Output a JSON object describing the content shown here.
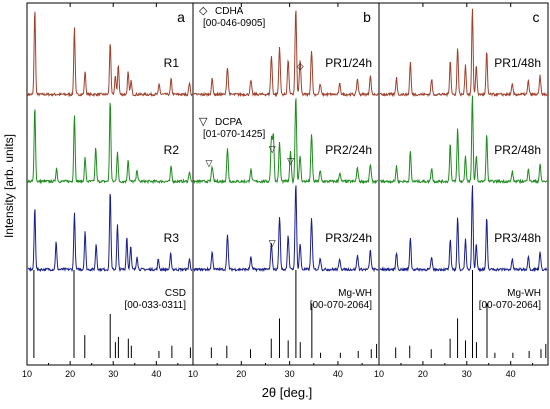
{
  "figure": {
    "ylabel": "Intensity [arb. units]",
    "xlabel": "2θ [deg.]",
    "xticks": [
      10,
      20,
      30,
      40
    ],
    "xlim": [
      10,
      48.5
    ],
    "colors": {
      "R1": "#a0412d",
      "R2": "#1e8c1e",
      "R3": "#1a1f8a",
      "ref": "#000000"
    }
  },
  "chart_data": [
    {
      "type": "line",
      "panel_letter": "a",
      "series": [
        {
          "name": "R1",
          "color": "#a0412d",
          "peaks": [
            [
              11.6,
              1.0
            ],
            [
              20.9,
              0.78
            ],
            [
              23.4,
              0.27
            ],
            [
              29.3,
              0.62
            ],
            [
              30.5,
              0.22
            ],
            [
              31.2,
              0.35
            ],
            [
              33.5,
              0.26
            ],
            [
              34.2,
              0.16
            ],
            [
              40.8,
              0.12
            ],
            [
              43.6,
              0.18
            ],
            [
              47.9,
              0.14
            ]
          ]
        },
        {
          "name": "R2",
          "color": "#1e8c1e",
          "peaks": [
            [
              11.6,
              0.88
            ],
            [
              16.7,
              0.16
            ],
            [
              20.9,
              0.78
            ],
            [
              23.4,
              0.28
            ],
            [
              25.9,
              0.4
            ],
            [
              29.3,
              0.95
            ],
            [
              31.0,
              0.35
            ],
            [
              33.5,
              0.26
            ],
            [
              35.6,
              0.14
            ],
            [
              43.6,
              0.18
            ],
            [
              47.9,
              0.12
            ]
          ]
        },
        {
          "name": "R3",
          "color": "#1a1f8a",
          "peaks": [
            [
              11.6,
              0.72
            ],
            [
              16.6,
              0.32
            ],
            [
              20.9,
              0.66
            ],
            [
              23.4,
              0.45
            ],
            [
              26.0,
              0.3
            ],
            [
              29.3,
              0.92
            ],
            [
              31.0,
              0.52
            ],
            [
              33.2,
              0.38
            ],
            [
              34.1,
              0.28
            ],
            [
              35.6,
              0.16
            ],
            [
              40.6,
              0.12
            ],
            [
              43.5,
              0.18
            ],
            [
              47.9,
              0.12
            ]
          ]
        }
      ],
      "reference": {
        "label": "CSD",
        "card": "[00-033-0311]",
        "lines": [
          [
            11.6,
            1.0
          ],
          [
            20.9,
            1.0
          ],
          [
            23.4,
            0.26
          ],
          [
            29.3,
            0.5
          ],
          [
            30.5,
            0.18
          ],
          [
            31.2,
            0.24
          ],
          [
            33.5,
            0.22
          ],
          [
            34.2,
            0.14
          ],
          [
            40.6,
            0.08
          ],
          [
            43.6,
            0.14
          ],
          [
            47.9,
            0.12
          ]
        ]
      }
    },
    {
      "type": "line",
      "panel_letter": "b",
      "series": [
        {
          "name": "PR1/24h",
          "color": "#a0412d",
          "peaks": [
            [
              13.8,
              0.18
            ],
            [
              17.0,
              0.32
            ],
            [
              21.9,
              0.16
            ],
            [
              26.2,
              0.45
            ],
            [
              27.9,
              0.55
            ],
            [
              29.7,
              0.4
            ],
            [
              31.3,
              1.0
            ],
            [
              32.2,
              0.4
            ],
            [
              34.6,
              0.52
            ],
            [
              36.4,
              0.12
            ],
            [
              40.5,
              0.12
            ],
            [
              44.2,
              0.18
            ],
            [
              46.9,
              0.22
            ]
          ]
        },
        {
          "name": "PR2/24h",
          "color": "#1e8c1e",
          "peaks": [
            [
              13.8,
              0.18
            ],
            [
              17.0,
              0.38
            ],
            [
              21.9,
              0.14
            ],
            [
              26.2,
              0.5
            ],
            [
              26.6,
              0.55
            ],
            [
              27.9,
              0.45
            ],
            [
              30.2,
              0.35
            ],
            [
              31.3,
              1.0
            ],
            [
              32.2,
              0.3
            ],
            [
              34.6,
              0.55
            ],
            [
              36.4,
              0.12
            ],
            [
              40.5,
              0.1
            ],
            [
              44.2,
              0.16
            ],
            [
              46.9,
              0.2
            ]
          ]
        },
        {
          "name": "PR3/24h",
          "color": "#1a1f8a",
          "peaks": [
            [
              13.8,
              0.2
            ],
            [
              17.0,
              0.4
            ],
            [
              21.9,
              0.14
            ],
            [
              26.2,
              0.3
            ],
            [
              27.9,
              0.62
            ],
            [
              29.7,
              0.4
            ],
            [
              31.3,
              1.0
            ],
            [
              32.2,
              0.3
            ],
            [
              34.6,
              0.6
            ],
            [
              36.4,
              0.14
            ],
            [
              40.5,
              0.12
            ],
            [
              44.2,
              0.16
            ],
            [
              46.9,
              0.22
            ]
          ]
        }
      ],
      "annotations": [
        {
          "symbol": "◇",
          "name": "CDHA",
          "card": "[00-046-0905]"
        },
        {
          "symbol": "▽",
          "name": "DCPA",
          "card": "[01-070-1425]"
        }
      ],
      "reference": {
        "label": "Mg-WH",
        "card": "[00-070-2064]",
        "lines": [
          [
            13.8,
            0.12
          ],
          [
            17.0,
            0.14
          ],
          [
            21.9,
            0.1
          ],
          [
            26.2,
            0.22
          ],
          [
            27.9,
            0.45
          ],
          [
            29.7,
            0.2
          ],
          [
            31.3,
            1.0
          ],
          [
            32.2,
            0.18
          ],
          [
            34.6,
            0.62
          ],
          [
            36.4,
            0.06
          ],
          [
            40.5,
            0.06
          ],
          [
            44.2,
            0.08
          ],
          [
            46.9,
            0.1
          ],
          [
            48.0,
            0.16
          ]
        ]
      }
    },
    {
      "type": "line",
      "panel_letter": "c",
      "series": [
        {
          "name": "PR1/48h",
          "color": "#a0412d",
          "peaks": [
            [
              13.8,
              0.2
            ],
            [
              17.0,
              0.38
            ],
            [
              21.9,
              0.18
            ],
            [
              26.2,
              0.4
            ],
            [
              27.9,
              0.55
            ],
            [
              29.7,
              0.35
            ],
            [
              31.3,
              1.0
            ],
            [
              32.2,
              0.35
            ],
            [
              34.6,
              0.5
            ],
            [
              40.5,
              0.12
            ],
            [
              44.2,
              0.16
            ],
            [
              46.9,
              0.22
            ]
          ]
        },
        {
          "name": "PR2/48h",
          "color": "#1e8c1e",
          "peaks": [
            [
              13.8,
              0.18
            ],
            [
              17.0,
              0.35
            ],
            [
              21.9,
              0.16
            ],
            [
              26.2,
              0.45
            ],
            [
              27.9,
              0.62
            ],
            [
              29.7,
              0.3
            ],
            [
              31.3,
              1.0
            ],
            [
              32.2,
              0.3
            ],
            [
              34.6,
              0.55
            ],
            [
              40.5,
              0.12
            ],
            [
              44.2,
              0.16
            ],
            [
              46.9,
              0.2
            ]
          ]
        },
        {
          "name": "PR3/48h",
          "color": "#1a1f8a",
          "peaks": [
            [
              13.8,
              0.2
            ],
            [
              17.0,
              0.38
            ],
            [
              21.9,
              0.14
            ],
            [
              26.2,
              0.35
            ],
            [
              27.9,
              0.62
            ],
            [
              29.7,
              0.35
            ],
            [
              31.3,
              1.0
            ],
            [
              32.2,
              0.3
            ],
            [
              34.6,
              0.6
            ],
            [
              40.5,
              0.12
            ],
            [
              44.2,
              0.16
            ],
            [
              46.9,
              0.22
            ]
          ]
        }
      ],
      "reference": {
        "label": "Mg-WH",
        "card": "[00-070-2064]",
        "lines": [
          [
            13.8,
            0.12
          ],
          [
            17.0,
            0.14
          ],
          [
            21.9,
            0.1
          ],
          [
            26.2,
            0.22
          ],
          [
            27.9,
            0.45
          ],
          [
            29.7,
            0.2
          ],
          [
            31.3,
            1.0
          ],
          [
            32.2,
            0.18
          ],
          [
            34.6,
            0.62
          ],
          [
            36.4,
            0.06
          ],
          [
            40.5,
            0.06
          ],
          [
            44.2,
            0.08
          ],
          [
            46.9,
            0.1
          ],
          [
            48.0,
            0.16
          ]
        ]
      }
    }
  ]
}
